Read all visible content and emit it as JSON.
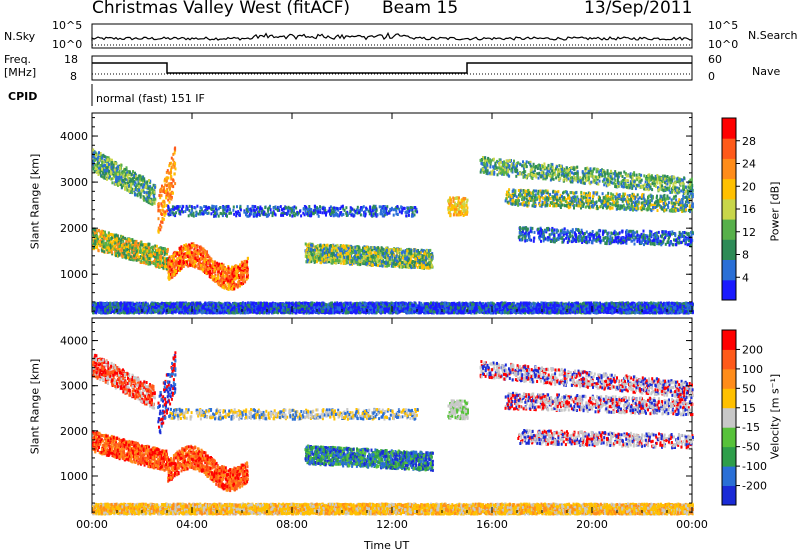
{
  "header": {
    "title": "Christmas Valley West (fitACF)",
    "beam": "Beam 15",
    "date": "13/Sep/2011"
  },
  "strip_labels": {
    "nsky": "N.Sky",
    "nsky_ticks": [
      "10^5",
      "10^0"
    ],
    "nsearch": "N.Search",
    "nsearch_ticks": [
      "10^5",
      "10^0"
    ],
    "freq": "Freq.",
    "freq_unit": "[MHz]",
    "freq_ticks": [
      "18",
      "8"
    ],
    "nave": "Nave",
    "nave_ticks": [
      "60",
      "0"
    ],
    "cpid": "CPID",
    "cpid_value": "normal (fast) 151 IF"
  },
  "chart_data": [
    {
      "type": "heatmap",
      "panel": "power",
      "ylabel": "Slant Range [km]",
      "ylim": [
        180,
        4500
      ],
      "xlim_hours": [
        0,
        24
      ],
      "colorbar_label": "Power [dB]",
      "colorbar_ticks": [
        "4",
        "8",
        "12",
        "16",
        "20",
        "24",
        "28"
      ],
      "colors": [
        "#1a1aff",
        "#2a6fd6",
        "#2e8b57",
        "#57b04a",
        "#c8d64a",
        "#ffc000",
        "#ff8c1a",
        "#ff5a1a",
        "#ff0000"
      ]
    },
    {
      "type": "heatmap",
      "panel": "velocity",
      "ylabel": "Slant Range [km]",
      "ylim": [
        180,
        4500
      ],
      "xlim_hours": [
        0,
        24
      ],
      "colorbar_label": "Velocity [m s⁻¹]",
      "colorbar_ticks": [
        "200",
        "100",
        "50",
        "15",
        "-15",
        "-50",
        "-100",
        "-200"
      ],
      "colors": [
        "#1a2bd6",
        "#2a6fd6",
        "#2e9e4a",
        "#57c23a",
        "#c8c8c8",
        "#ffc000",
        "#ff8c1a",
        "#ff5a1a",
        "#ff0000"
      ]
    }
  ],
  "axes": {
    "yticks": [
      "1000",
      "2000",
      "3000",
      "4000"
    ],
    "xticks": [
      "00:00",
      "04:00",
      "08:00",
      "12:00",
      "16:00",
      "20:00",
      "00:00"
    ],
    "xlabel": "Time UT"
  }
}
